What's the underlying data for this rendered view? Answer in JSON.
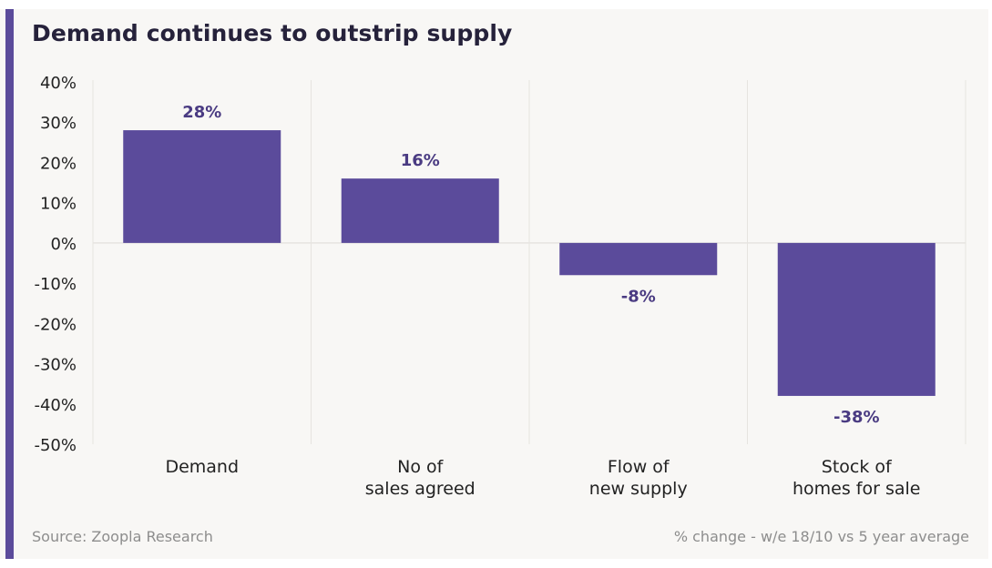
{
  "title": "Demand continues to outstrip supply",
  "source": "Source: Zoopla Research",
  "note": "% change - w/e 18/10 vs 5 year average",
  "colors": {
    "bar": "#5b4b9b",
    "label": "#4a3b82",
    "grid": "#e6e4e0",
    "axis_text": "#222222",
    "accent": "#5b4b9b"
  },
  "chart_data": {
    "type": "bar",
    "title": "Demand continues to outstrip supply",
    "categories": [
      [
        "Demand"
      ],
      [
        "No of",
        "sales agreed"
      ],
      [
        "Flow of",
        "new supply"
      ],
      [
        "Stock of",
        "homes for sale"
      ]
    ],
    "values": [
      28,
      16,
      -8,
      -38
    ],
    "value_labels": [
      "28%",
      "16%",
      "-8%",
      "-38%"
    ],
    "yticks": [
      40,
      30,
      20,
      10,
      0,
      -10,
      -20,
      -30,
      -40,
      -50
    ],
    "ytick_labels": [
      "40%",
      "30%",
      "20%",
      "10%",
      "0%",
      "-10%",
      "-20%",
      "-30%",
      "-40%",
      "-50%"
    ],
    "ylim": [
      -50,
      40
    ],
    "xlabel": "",
    "ylabel": "",
    "grid": "vertical separators between categories",
    "legend": "none"
  }
}
